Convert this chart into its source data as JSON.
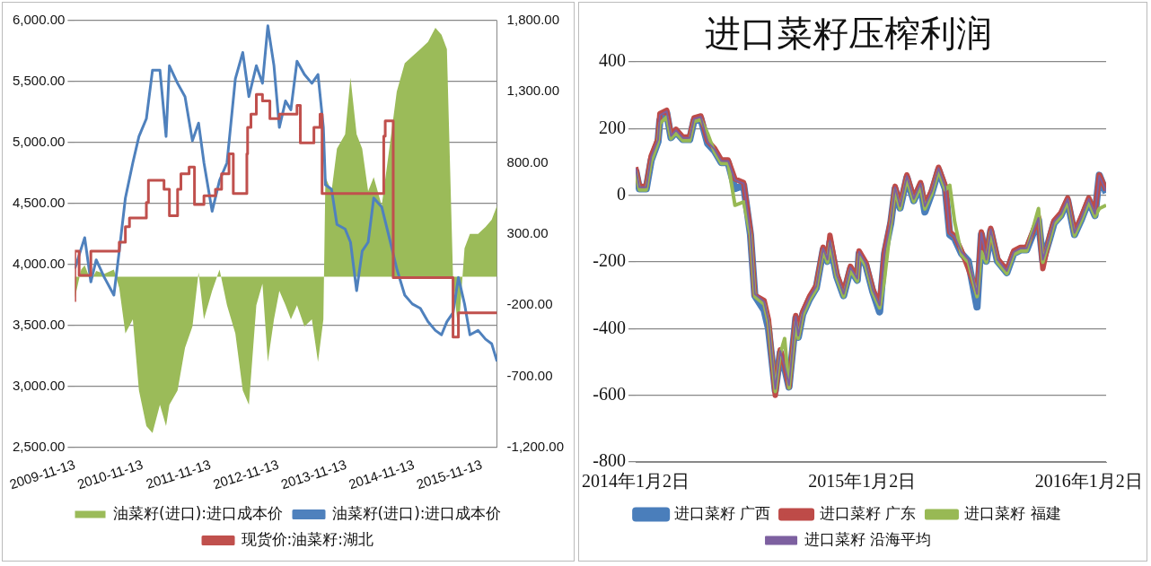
{
  "chart_data": [
    {
      "type": "area",
      "x": [
        "2009-11-13",
        "2009-12-17",
        "2010-01-05",
        "2010-02-07",
        "2010-03-08",
        "2010-04-21",
        "2010-06-11",
        "2010-07-10",
        "2010-08-12",
        "2010-09-21",
        "2010-10-24",
        "2010-12-03",
        "2011-01-05",
        "2011-02-14",
        "2011-03-19",
        "2011-04-06",
        "2011-05-20",
        "2011-06-29",
        "2011-08-08",
        "2011-09-10",
        "2011-10-09",
        "2011-11-22",
        "2012-01-01",
        "2012-02-10",
        "2012-03-26",
        "2012-05-05",
        "2012-06-07",
        "2012-07-17",
        "2012-08-19",
        "2012-09-17",
        "2012-10-20",
        "2012-11-18",
        "2012-12-21",
        "2013-01-19",
        "2013-02-21",
        "2013-04-02",
        "2013-05-12",
        "2013-06-14",
        "2013-07-13",
        "2013-07-24",
        "2013-08-26",
        "2013-09-24",
        "2013-11-07",
        "2013-12-06",
        "2014-01-08",
        "2014-02-07",
        "2014-03-11",
        "2014-04-10",
        "2014-05-23",
        "2014-07-03",
        "2014-08-12",
        "2014-09-24",
        "2014-11-04",
        "2014-12-17",
        "2015-01-27",
        "2015-03-08",
        "2015-04-10",
        "2015-05-09",
        "2015-06-11",
        "2015-07-10",
        "2015-08-12",
        "2015-09-10",
        "2015-10-24",
        "2015-12-03",
        "2016-01-05",
        "2016-02-03"
      ],
      "series": [
        {
          "name": "油菜籽(进口):进口成本价",
          "color": "#9bbb59",
          "axis": "y2",
          "values": [
            -150,
            50,
            80,
            -30,
            40,
            20,
            50,
            -80,
            -400,
            -300,
            -800,
            -1050,
            -1100,
            -900,
            -1050,
            -900,
            -800,
            -500,
            -350,
            30,
            -300,
            -100,
            50,
            -200,
            -400,
            -800,
            -900,
            -200,
            -50,
            -600,
            -300,
            -100,
            -200,
            -300,
            -200,
            -350,
            -300,
            -600,
            -300,
            700,
            600,
            900,
            1000,
            1400,
            1000,
            900,
            600,
            700,
            500,
            900,
            1300,
            1500,
            1550,
            1600,
            1650,
            1750,
            1700,
            1600,
            0,
            -400,
            200,
            300,
            300,
            350,
            400,
            500
          ]
        },
        {
          "type": "line",
          "name": "油菜籽(进口):进口成本价",
          "color": "#4f81bd",
          "values": [
            3966,
            4130,
            4220,
            3857,
            4038,
            3893,
            3749,
            4110,
            4545,
            4834,
            5050,
            5196,
            5594,
            5594,
            5050,
            5630,
            5486,
            5377,
            5015,
            5160,
            4834,
            4436,
            4690,
            4834,
            5522,
            5739,
            5377,
            5630,
            5486,
            5957,
            5630,
            5124,
            5341,
            5269,
            5667,
            5558,
            5486,
            5558,
            5124,
            4653,
            4617,
            4328,
            4291,
            4183,
            3785,
            4110,
            4183,
            4545,
            4472,
            4219,
            3966,
            3749,
            3676,
            3640,
            3531,
            3459,
            3423,
            3531,
            3604,
            3893,
            3676,
            3423,
            3459,
            3387,
            3350,
            3205
          ]
        },
        {
          "type": "step",
          "name": "现货价:油菜籽:湖北",
          "color": "#c0504d",
          "x": [
            "2009-11-13",
            "2009-12-06",
            "2010-02-07",
            "2010-07-10",
            "2010-08-12",
            "2010-09-03",
            "2010-12-03",
            "2010-12-14",
            "2011-03-08",
            "2011-04-06",
            "2011-05-20",
            "2011-06-07",
            "2011-07-21",
            "2011-08-19",
            "2011-10-09",
            "2011-12-10",
            "2012-01-12",
            "2012-02-21",
            "2012-03-15",
            "2012-05-27",
            "2012-05-31",
            "2012-06-18",
            "2012-07-17",
            "2012-08-19",
            "2012-09-28",
            "2012-11-18",
            "2013-02-21",
            "2013-03-11",
            "2013-05-23",
            "2013-06-25",
            "2013-07-06",
            "2014-06-03",
            "2014-06-11",
            "2014-07-24",
            "2015-06-11",
            "2015-07-10",
            "2015-09-03",
            "2016-02-03"
          ],
          "values": [
            3694,
            4110,
            3911,
            4110,
            4183,
            4309,
            4382,
            4509,
            4690,
            4617,
            4400,
            4617,
            4744,
            4798,
            4491,
            4563,
            4617,
            4744,
            4907,
            4581,
            4907,
            5124,
            5233,
            5395,
            5341,
            5196,
            5233,
            5305,
            4997,
            5124,
            5233,
            4581,
            5052,
            5178,
            3893,
            3405,
            3604,
            3604
          ]
        }
      ],
      "xlim": [
        "2009-11-13",
        "2016-02-03"
      ],
      "xticks": [
        "2009-11-13",
        "2010-11-13",
        "2011-11-13",
        "2012-11-13",
        "2013-11-13",
        "2014-11-13",
        "2015-11-13"
      ],
      "ylim": [
        2500,
        6000
      ],
      "yticks": [
        {
          "value": 2500,
          "label": "2,500.00"
        },
        {
          "value": 3000,
          "label": "3,000.00"
        },
        {
          "value": 3500,
          "label": "3,500.00"
        },
        {
          "value": 4000,
          "label": "4,000.00"
        },
        {
          "value": 4500,
          "label": "4,500.00"
        },
        {
          "value": 5000,
          "label": "5,000.00"
        },
        {
          "value": 5500,
          "label": "5,500.00"
        },
        {
          "value": 6000,
          "label": "6,000.00"
        }
      ],
      "y2lim": [
        -1200,
        1800
      ],
      "y2ticks": [
        {
          "value": -1200,
          "label": "-1,200.00"
        },
        {
          "value": -700,
          "label": "-700.00"
        },
        {
          "value": -200,
          "label": "-200.00"
        },
        {
          "value": 300,
          "label": "300.00"
        },
        {
          "value": 800,
          "label": "800.00"
        },
        {
          "value": 1300,
          "label": "1,300.00"
        },
        {
          "value": 1800,
          "label": "1,800.00"
        }
      ],
      "grid": "y",
      "legend": "bottom"
    },
    {
      "type": "line",
      "title": "进口菜籽压榨利润",
      "x": [
        "2014-01-02",
        "2014-01-08",
        "2014-01-19",
        "2014-01-27",
        "2014-02-07",
        "2014-02-10",
        "2014-02-21",
        "2014-02-28",
        "2014-03-08",
        "2014-03-19",
        "2014-03-30",
        "2014-04-06",
        "2014-04-17",
        "2014-04-28",
        "2014-05-09",
        "2014-05-20",
        "2014-05-31",
        "2014-06-11",
        "2014-06-25",
        "2014-07-06",
        "2014-07-13",
        "2014-07-28",
        "2014-08-04",
        "2014-08-15",
        "2014-08-23",
        "2014-08-30",
        "2014-09-06",
        "2014-09-17",
        "2014-09-21",
        "2014-09-28",
        "2014-10-09",
        "2014-10-20",
        "2014-10-31",
        "2014-11-07",
        "2014-11-11",
        "2014-11-22",
        "2014-12-03",
        "2014-12-14",
        "2014-12-25",
        "2014-12-28",
        "2015-01-08",
        "2015-01-19",
        "2015-01-30",
        "2015-02-07",
        "2015-02-17",
        "2015-02-24",
        "2015-03-04",
        "2015-03-15",
        "2015-03-26",
        "2015-04-06",
        "2015-04-13",
        "2015-04-24",
        "2015-05-05",
        "2015-05-16",
        "2015-05-23",
        "2015-05-31",
        "2015-06-11",
        "2015-06-22",
        "2015-07-06",
        "2015-07-13",
        "2015-07-21",
        "2015-07-28",
        "2015-08-08",
        "2015-08-23",
        "2015-09-03",
        "2015-09-14",
        "2015-09-24",
        "2015-10-13",
        "2015-10-20",
        "2015-10-31",
        "2015-11-07",
        "2015-11-18",
        "2015-11-29",
        "2015-12-10",
        "2015-12-21",
        "2016-01-02",
        "2016-01-12",
        "2016-01-19",
        "2016-01-30"
      ],
      "series": [
        {
          "name": "进口菜籽 广西",
          "color": "#4a7ebb",
          "values": [
            76,
            19,
            19,
            105,
            161,
            225,
            247,
            173,
            190,
            167,
            167,
            224,
            230,
            155,
            133,
            98,
            98,
            20,
            30,
            -118,
            -301,
            -345,
            -400,
            -586,
            -472,
            -518,
            -575,
            -369,
            -426,
            -358,
            -312,
            -278,
            -164,
            -198,
            -141,
            -244,
            -301,
            -221,
            -255,
            -175,
            -210,
            -289,
            -350,
            -175,
            -84,
            19,
            -38,
            53,
            -16,
            30,
            -50,
            7,
            76,
            19,
            -118,
            -130,
            -175,
            -198,
            -335,
            -118,
            -198,
            -107,
            -198,
            -232,
            -175,
            -164,
            -164,
            -73,
            -198,
            -130,
            -84,
            -61,
            -16,
            -118,
            -73,
            -16,
            -61,
            60,
            7
          ]
        },
        {
          "name": "进口菜籽 广东",
          "color": "#be4b48",
          "values": [
            84,
            27,
            27,
            118,
            169,
            245,
            255,
            181,
            198,
            175,
            175,
            232,
            238,
            163,
            141,
            106,
            106,
            49,
            38,
            -110,
            -300,
            -316,
            -373,
            -600,
            -464,
            -510,
            -575,
            -361,
            -418,
            -350,
            -304,
            -270,
            -156,
            -190,
            -120,
            -236,
            -293,
            -213,
            -247,
            -167,
            -202,
            -281,
            -327,
            -167,
            -76,
            27,
            -30,
            61,
            -8,
            38,
            -30,
            15,
            84,
            27,
            -110,
            -122,
            -167,
            -220,
            -293,
            -110,
            -190,
            -99,
            -190,
            -224,
            -167,
            -156,
            -156,
            -65,
            -220,
            -122,
            -76,
            -53,
            -8,
            -110,
            -65,
            -8,
            -53,
            61,
            15
          ]
        },
        {
          "name": "进口菜籽 福建",
          "color": "#98b954",
          "values": [
            73,
            16,
            16,
            100,
            158,
            215,
            235,
            170,
            187,
            164,
            164,
            221,
            227,
            185,
            130,
            95,
            95,
            -30,
            -20,
            -121,
            -304,
            -327,
            -384,
            -589,
            -475,
            -430,
            -578,
            -380,
            -429,
            -361,
            -315,
            -281,
            -167,
            -201,
            -144,
            -247,
            -304,
            -224,
            -258,
            -178,
            -213,
            -292,
            -338,
            -250,
            -87,
            16,
            -41,
            50,
            -19,
            27,
            -41,
            4,
            73,
            16,
            30,
            -80,
            -178,
            -201,
            -304,
            -170,
            -201,
            -110,
            -201,
            -235,
            -178,
            -167,
            -167,
            -40,
            -201,
            -133,
            -87,
            -64,
            -19,
            -121,
            -76,
            -19,
            -64,
            -40,
            -30
          ]
        },
        {
          "name": "进口菜籽 沿海平均",
          "color": "#7d60a0",
          "values": [
            81,
            24,
            24,
            115,
            166,
            240,
            252,
            178,
            195,
            172,
            172,
            229,
            235,
            160,
            138,
            103,
            103,
            46,
            35,
            -113,
            -296,
            -319,
            -376,
            -581,
            -467,
            -513,
            -570,
            -364,
            -421,
            -353,
            -307,
            -273,
            -159,
            -193,
            -136,
            -239,
            -296,
            -216,
            -250,
            -170,
            -205,
            -284,
            -330,
            -170,
            -79,
            24,
            -33,
            58,
            -11,
            35,
            -33,
            12,
            81,
            24,
            -113,
            -125,
            -170,
            -193,
            -296,
            -113,
            -193,
            -102,
            -193,
            -227,
            -170,
            -159,
            -159,
            -68,
            -193,
            -125,
            -79,
            -56,
            -11,
            -113,
            -68,
            -11,
            -56,
            58,
            12
          ]
        }
      ],
      "xlim": [
        "2014-01-02",
        "2016-01-30"
      ],
      "xticks": [
        {
          "value": "2014-01-02",
          "label": "2014年1月2日"
        },
        {
          "value": "2015-01-02",
          "label": "2015年1月2日"
        },
        {
          "value": "2016-01-02",
          "label": "2016年1月2日"
        }
      ],
      "ylim": [
        -800,
        400
      ],
      "yticks": [
        -800,
        -600,
        -400,
        -200,
        0,
        200,
        400
      ],
      "grid": "y",
      "legend": "bottom"
    }
  ]
}
